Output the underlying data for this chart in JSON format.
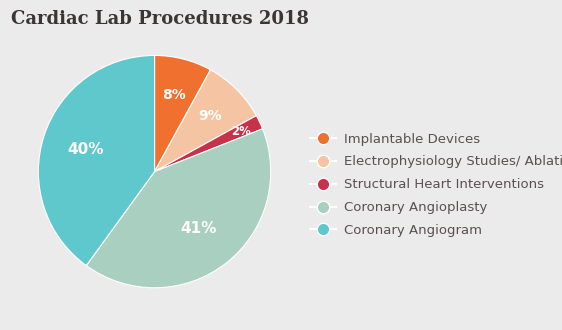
{
  "title": "Cardiac Lab Procedures 2018",
  "labels": [
    "Implantable Devices",
    "Electrophysiology Studies/ Ablation",
    "Structural Heart Interventions",
    "Coronary Angioplasty",
    "Coronary Angiogram"
  ],
  "values": [
    8,
    9,
    2,
    41,
    40
  ],
  "colors": [
    "#F07030",
    "#F5C5A3",
    "#C8314A",
    "#A8CFC0",
    "#5EC8CC"
  ],
  "pct_labels": [
    "8%",
    "9%",
    "2%",
    "41%",
    "40%"
  ],
  "background_color": "#EBEBEB",
  "title_color": "#3D3535",
  "legend_text_color": "#5A5050",
  "title_fontsize": 13,
  "legend_fontsize": 9.5
}
